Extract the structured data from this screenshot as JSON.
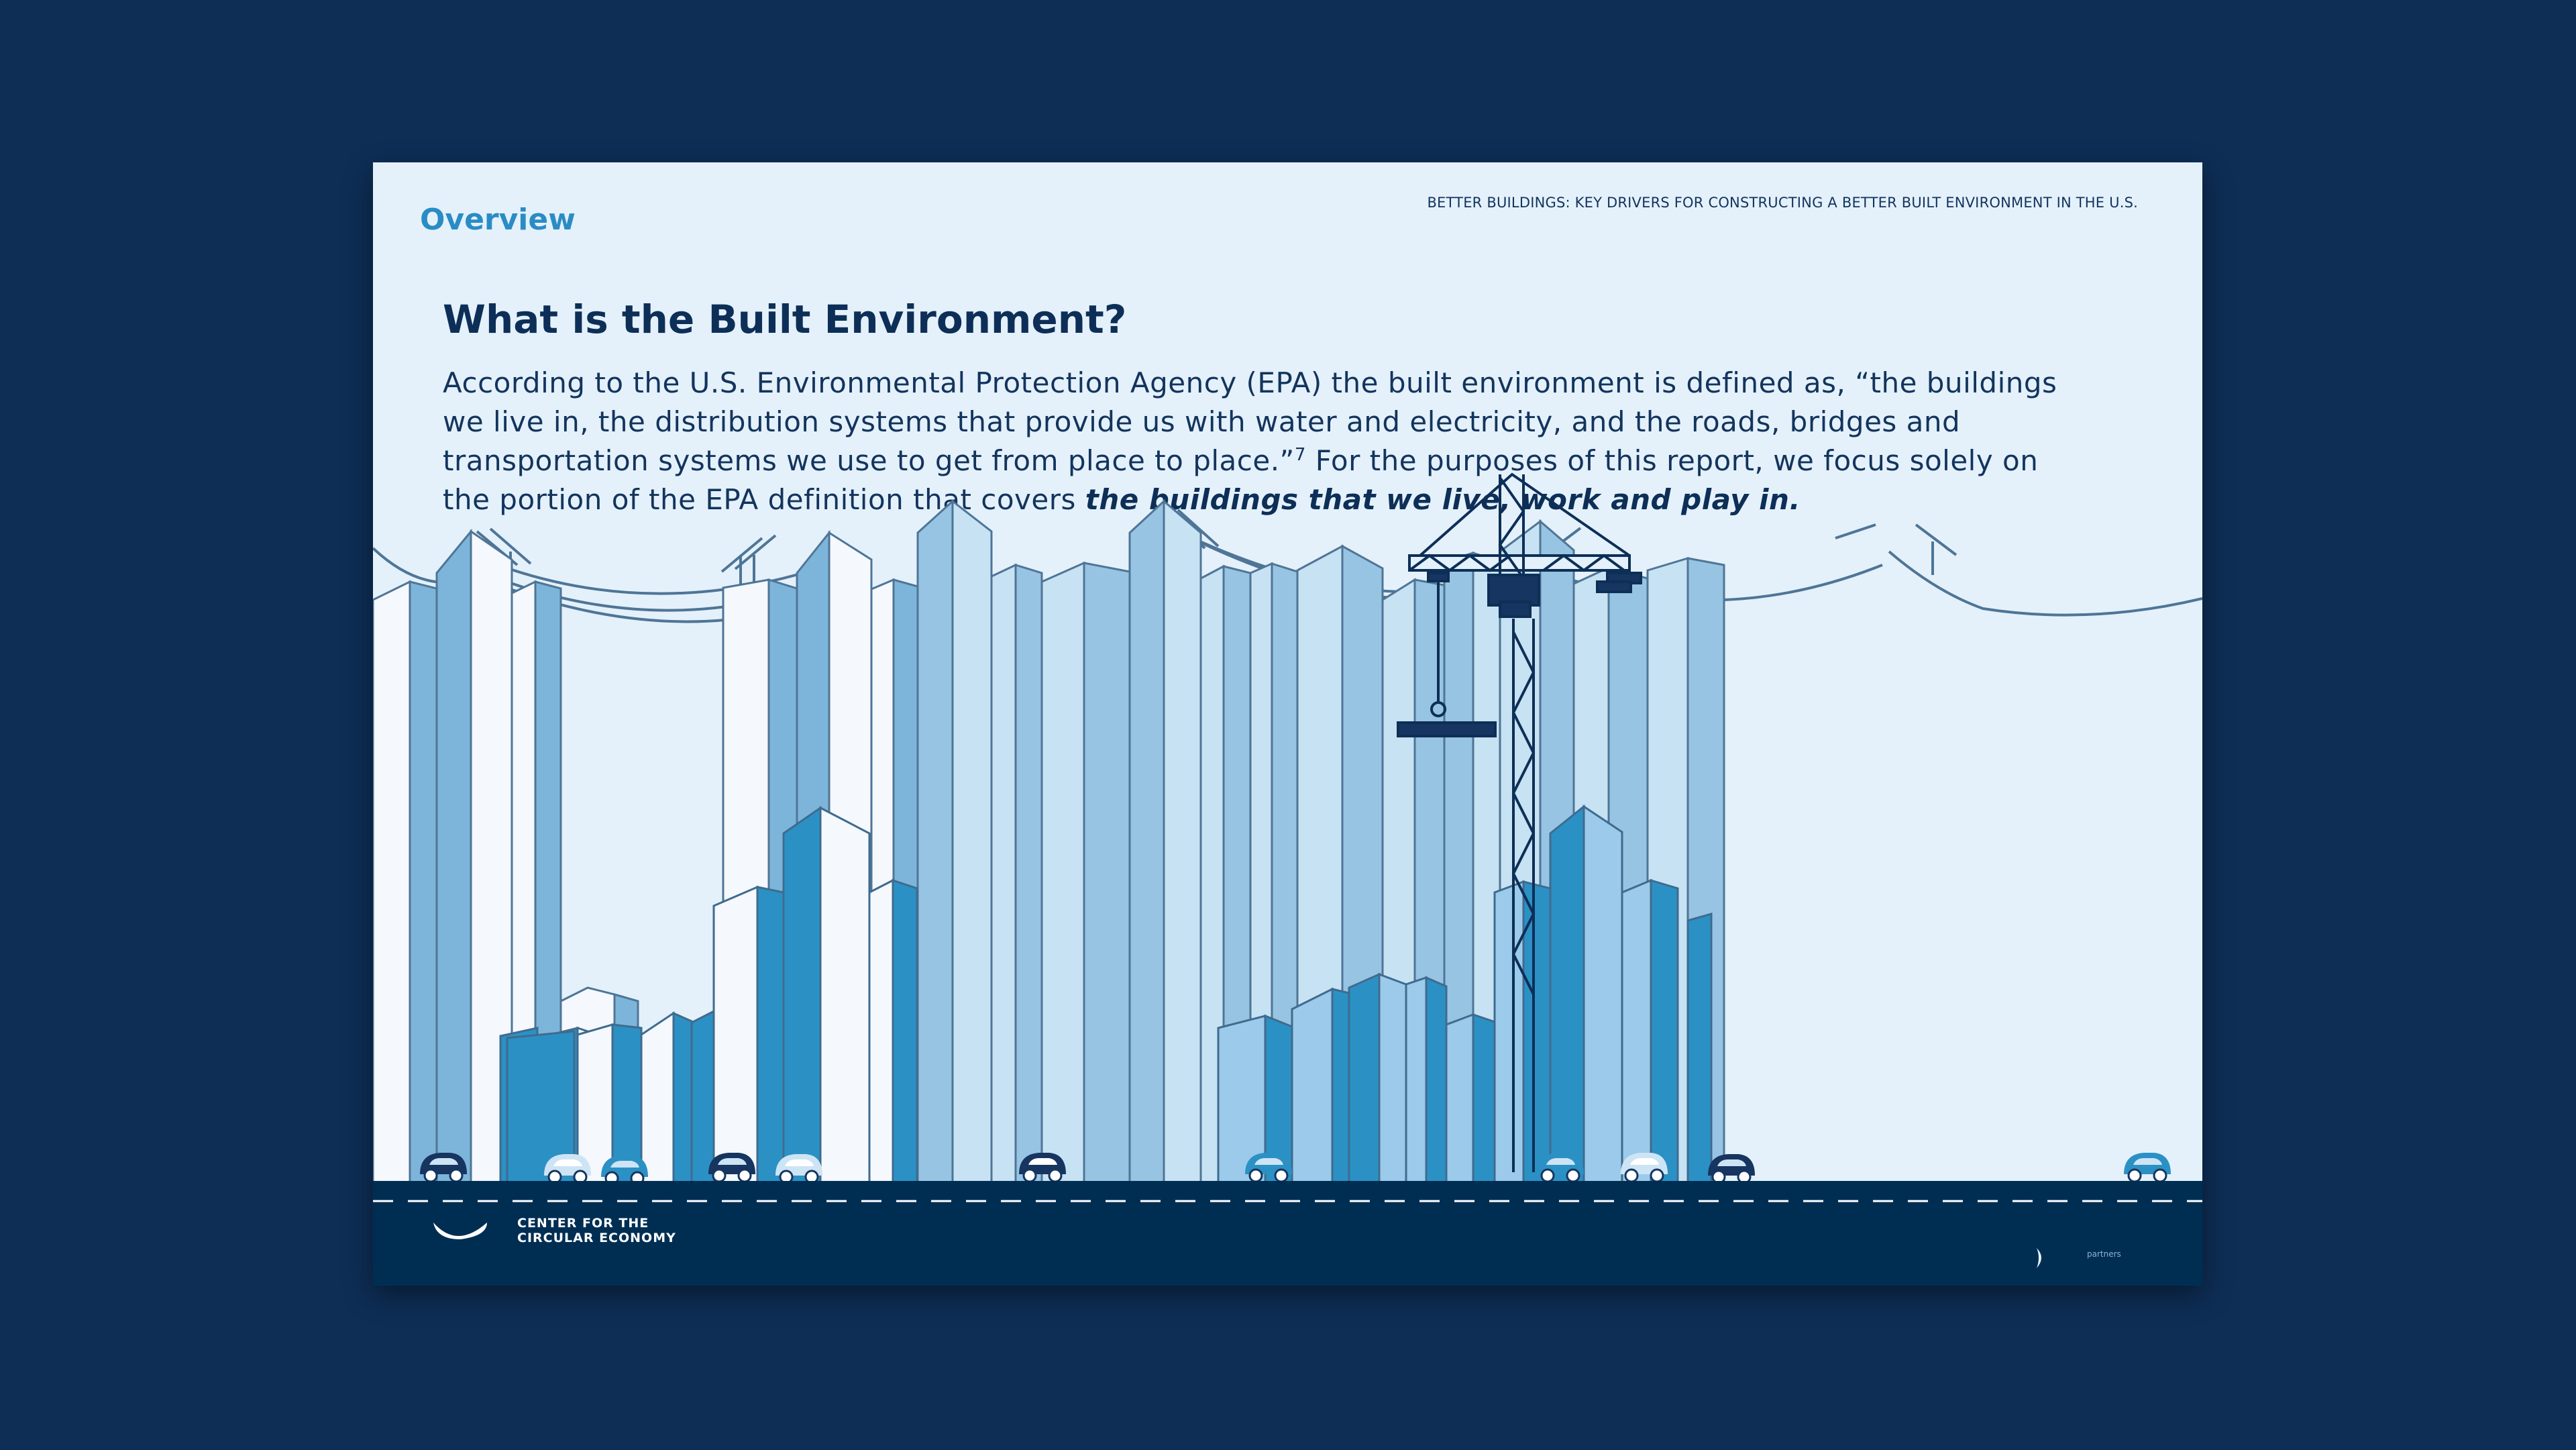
{
  "header": {
    "section": "Overview",
    "running_head": "BETTER BUILDINGS: KEY DRIVERS FOR CONSTRUCTING A BETTER BUILT ENVIRONMENT IN THE U.S."
  },
  "content": {
    "heading": "What is the Built Environment?",
    "paragraph_lead": "According to the U.S. Environmental Protection Agency (EPA) the built environment is defined as, “the buildings we live in, the distribution systems that provide us with water and electricity, and the roads, bridges and transportation systems we use to get from place to place.”",
    "footnote_ref": "7",
    "paragraph_mid": " For the purposes of this report, we focus solely on the portion of the EPA definition that covers ",
    "paragraph_emphasis": "the buildings that we live, work and play in."
  },
  "footer": {
    "logo_line1": "CENTER FOR THE",
    "logo_line2": "CIRCULAR ECONOMY",
    "partners": "partners"
  },
  "colors": {
    "background": "#0e2e56",
    "page": "#e4f1fb",
    "accent": "#2a8cc4",
    "navy": "#0d2f57",
    "road": "#002e53"
  }
}
